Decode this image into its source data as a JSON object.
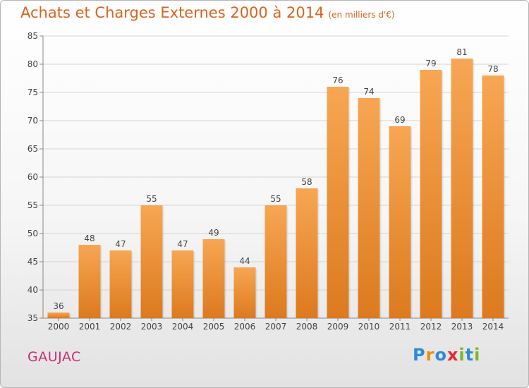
{
  "title": "Achats et Charges Externes 2000 à 2014",
  "subtitle": "(en milliers d'€)",
  "commune": "GAUJAC",
  "logo": {
    "letters": [
      "P",
      "r",
      "o",
      "x",
      "i",
      "t",
      "i"
    ],
    "colors": [
      "#2f8bd8",
      "#f08c00",
      "#2f8bd8",
      "#e8262f",
      "#7ab829",
      "#2f8bd8",
      "#7ab829"
    ]
  },
  "colors": {
    "bar_top": "#f7a653",
    "bar_bottom": "#dc7a1e",
    "title": "#d9631e",
    "commune": "#cc2e74"
  },
  "chart_data": {
    "type": "bar",
    "categories": [
      "2000",
      "2001",
      "2002",
      "2003",
      "2004",
      "2005",
      "2006",
      "2007",
      "2008",
      "2009",
      "2010",
      "2011",
      "2012",
      "2013",
      "2014"
    ],
    "values": [
      36,
      48,
      47,
      55,
      47,
      49,
      44,
      55,
      58,
      76,
      74,
      69,
      79,
      81,
      78
    ],
    "ylim": [
      35,
      85
    ],
    "yticks": [
      35,
      40,
      45,
      50,
      55,
      60,
      65,
      70,
      75,
      80,
      85
    ],
    "grid": true
  }
}
